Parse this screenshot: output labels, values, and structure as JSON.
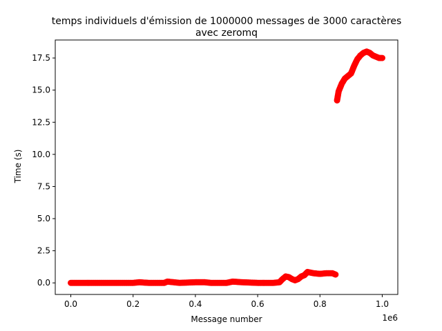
{
  "chart_data": {
    "type": "scatter",
    "title": [
      "temps individuels d'émission de 1000000 messages de 3000 caractères",
      "avec zeromq"
    ],
    "xlabel": "Message number",
    "ylabel": "Time (s)",
    "x_offset_label": "1e6",
    "xlim": [
      -50000,
      1050000
    ],
    "ylim": [
      -0.9,
      18.9
    ],
    "x_ticks": [
      0,
      200000,
      400000,
      600000,
      800000,
      1000000
    ],
    "x_tick_labels": [
      "0.0",
      "0.2",
      "0.4",
      "0.6",
      "0.8",
      "1.0"
    ],
    "y_ticks": [
      0,
      2.5,
      5,
      7.5,
      10,
      12.5,
      15,
      17.5
    ],
    "y_tick_labels": [
      "0.0",
      "2.5",
      "5.0",
      "7.5",
      "10.0",
      "12.5",
      "15.0",
      "17.5"
    ],
    "grid": false,
    "series": [
      {
        "color": "#ff0000",
        "marker": "circle",
        "x": [
          0,
          50000,
          100000,
          150000,
          200000,
          220000,
          250000,
          300000,
          310000,
          350000,
          400000,
          430000,
          450000,
          500000,
          520000,
          550000,
          600000,
          650000,
          670000,
          680000,
          690000,
          700000,
          710000,
          720000,
          730000,
          740000,
          750000,
          760000,
          780000,
          800000,
          820000,
          840000,
          850000,
          855000,
          860000,
          870000,
          880000,
          890000,
          900000,
          910000,
          920000,
          930000,
          940000,
          950000,
          960000,
          970000,
          980000,
          990000,
          1000000
        ],
        "y": [
          0.0,
          0.0,
          0.0,
          0.0,
          0.0,
          0.05,
          0.0,
          0.0,
          0.1,
          0.0,
          0.05,
          0.05,
          0.0,
          0.0,
          0.1,
          0.05,
          0.0,
          0.0,
          0.05,
          0.3,
          0.5,
          0.45,
          0.3,
          0.2,
          0.3,
          0.5,
          0.6,
          0.85,
          0.75,
          0.7,
          0.75,
          0.75,
          0.65,
          14.2,
          14.9,
          15.5,
          15.9,
          16.1,
          16.3,
          16.9,
          17.4,
          17.7,
          17.9,
          18.0,
          17.9,
          17.7,
          17.6,
          17.5,
          17.5
        ]
      }
    ]
  }
}
